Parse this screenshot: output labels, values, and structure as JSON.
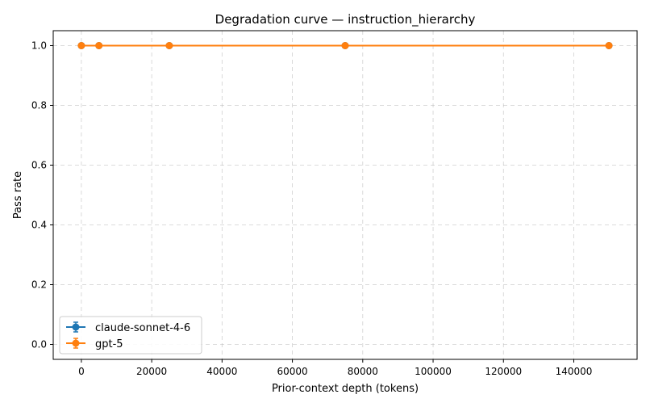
{
  "chart_data": {
    "type": "line",
    "title": "Degradation curve — instruction_hierarchy",
    "xlabel": "Prior-context depth (tokens)",
    "ylabel": "Pass rate",
    "xlim": [
      -8000,
      158000
    ],
    "ylim": [
      -0.05,
      1.05
    ],
    "xticks": [
      0,
      20000,
      40000,
      60000,
      80000,
      100000,
      120000,
      140000
    ],
    "yticks": [
      0.0,
      0.2,
      0.4,
      0.6,
      0.8,
      1.0
    ],
    "xtick_labels": [
      "0",
      "20000",
      "40000",
      "60000",
      "80000",
      "100000",
      "120000",
      "140000"
    ],
    "ytick_labels": [
      "0.0",
      "0.2",
      "0.4",
      "0.6",
      "0.8",
      "1.0"
    ],
    "grid": true,
    "legend_position": "lower-left",
    "series": [
      {
        "name": "claude-sonnet-4-6",
        "color": "#1f77b4",
        "x": [
          0,
          5000,
          25000,
          75000,
          150000
        ],
        "y": [
          1.0,
          1.0,
          1.0,
          1.0,
          1.0
        ]
      },
      {
        "name": "gpt-5",
        "color": "#ff7f0e",
        "x": [
          0,
          5000,
          25000,
          75000,
          150000
        ],
        "y": [
          1.0,
          1.0,
          1.0,
          1.0,
          1.0
        ]
      }
    ]
  }
}
